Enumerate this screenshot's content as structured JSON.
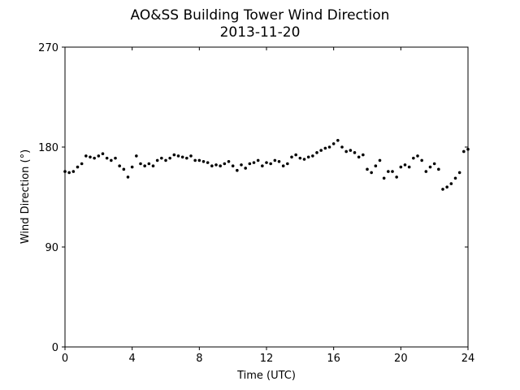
{
  "chart_data": {
    "type": "scatter",
    "title": "AO&SS Building Tower Wind Direction",
    "subtitle": "2013-11-20",
    "x_label": "Time (UTC)",
    "y_label": "Wind Direction (°)",
    "color": "#000000",
    "xlim": [
      0,
      24
    ],
    "xticks": [
      0,
      4,
      8,
      12,
      16,
      20,
      24
    ],
    "ylim": [
      0,
      270
    ],
    "yticks": [
      0,
      90,
      180,
      270
    ],
    "x": [
      0,
      0.25,
      0.5,
      0.75,
      1,
      1.25,
      1.5,
      1.75,
      2,
      2.25,
      2.5,
      2.75,
      3,
      3.25,
      3.5,
      3.75,
      4,
      4.25,
      4.5,
      4.75,
      5,
      5.25,
      5.5,
      5.75,
      6,
      6.25,
      6.5,
      6.75,
      7,
      7.25,
      7.5,
      7.75,
      8,
      8.25,
      8.5,
      8.75,
      9,
      9.25,
      9.5,
      9.75,
      10,
      10.25,
      10.5,
      10.75,
      11,
      11.25,
      11.5,
      11.75,
      12,
      12.25,
      12.5,
      12.75,
      13,
      13.25,
      13.5,
      13.75,
      14,
      14.25,
      14.5,
      14.75,
      15,
      15.25,
      15.5,
      15.75,
      16,
      16.25,
      16.5,
      16.75,
      17,
      17.25,
      17.5,
      17.75,
      18,
      18.25,
      18.5,
      18.75,
      19,
      19.25,
      19.5,
      19.75,
      20,
      20.25,
      20.5,
      20.75,
      21,
      21.25,
      21.5,
      21.75,
      22,
      22.25,
      22.5,
      22.75,
      23,
      23.25,
      23.5,
      23.75,
      24
    ],
    "values": [
      158,
      157,
      158,
      162,
      165,
      172,
      171,
      170,
      172,
      174,
      170,
      168,
      170,
      163,
      160,
      153,
      162,
      172,
      165,
      163,
      165,
      163,
      168,
      170,
      168,
      170,
      173,
      172,
      171,
      170,
      172,
      168,
      168,
      167,
      166,
      163,
      164,
      163,
      165,
      167,
      163,
      159,
      164,
      161,
      165,
      166,
      168,
      163,
      166,
      165,
      168,
      167,
      163,
      165,
      171,
      173,
      170,
      169,
      171,
      172,
      175,
      177,
      179,
      180,
      183,
      186,
      180,
      176,
      177,
      175,
      171,
      173,
      160,
      157,
      163,
      168,
      152,
      158,
      158,
      153,
      162,
      164,
      162,
      170,
      172,
      168,
      158,
      162,
      165,
      160,
      142,
      144,
      147,
      152,
      157,
      176,
      178
    ]
  }
}
